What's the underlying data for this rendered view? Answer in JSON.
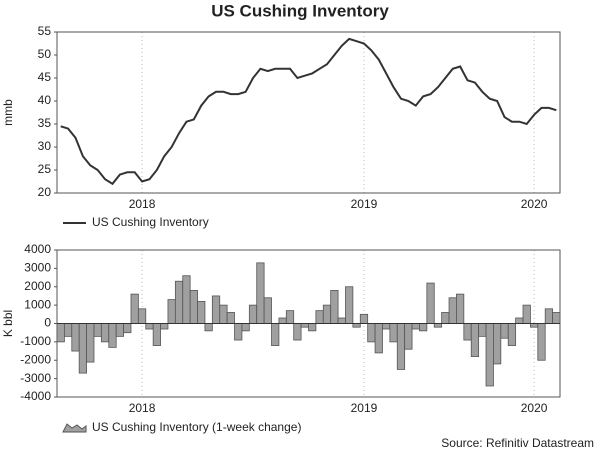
{
  "title": "US Cushing Inventory",
  "source": "Source: Refinitiv Datastream",
  "chart_data": [
    {
      "type": "line",
      "ylabel": "mmb",
      "categories": [
        null,
        null,
        null,
        null,
        null,
        null,
        null,
        null,
        null,
        null,
        null,
        "2018",
        null,
        null,
        null,
        null,
        null,
        null,
        null,
        null,
        null,
        null,
        null,
        null,
        null,
        null,
        null,
        null,
        null,
        null,
        null,
        null,
        null,
        null,
        null,
        null,
        null,
        null,
        null,
        null,
        null,
        "2019",
        null,
        null,
        null,
        null,
        null,
        null,
        null,
        null,
        null,
        null,
        null,
        null,
        null,
        null,
        null,
        null,
        null,
        null,
        null,
        null,
        null,
        null,
        "2020",
        null,
        null,
        null
      ],
      "series": [
        {
          "name": "US Cushing Inventory",
          "color": "#333333",
          "values": [
            34.5,
            34,
            32,
            28,
            26,
            25,
            23,
            22,
            24,
            24.5,
            24.5,
            22.5,
            23,
            25,
            28,
            30,
            33,
            35.5,
            36,
            39,
            41,
            42,
            42,
            41.5,
            41.5,
            42,
            45,
            47,
            46.5,
            47,
            47,
            47,
            45,
            45.5,
            46,
            47,
            48,
            50,
            52,
            53.5,
            53,
            52.5,
            51,
            49,
            46,
            43,
            40.5,
            40,
            39,
            41,
            41.5,
            43,
            45,
            47,
            47.5,
            44.5,
            44,
            42,
            40.5,
            40,
            36.5,
            35.5,
            35.5,
            35,
            37,
            38.5,
            38.5,
            38
          ]
        }
      ],
      "ylim": [
        20,
        55
      ],
      "yticks": [
        20,
        25,
        30,
        35,
        40,
        45,
        50,
        55
      ],
      "grid": true
    },
    {
      "type": "area",
      "ylabel": "K bbl",
      "categories": [
        null,
        null,
        null,
        null,
        null,
        null,
        null,
        null,
        null,
        null,
        null,
        "2018",
        null,
        null,
        null,
        null,
        null,
        null,
        null,
        null,
        null,
        null,
        null,
        null,
        null,
        null,
        null,
        null,
        null,
        null,
        null,
        null,
        null,
        null,
        null,
        null,
        null,
        null,
        null,
        null,
        null,
        "2019",
        null,
        null,
        null,
        null,
        null,
        null,
        null,
        null,
        null,
        null,
        null,
        null,
        null,
        null,
        null,
        null,
        null,
        null,
        null,
        null,
        null,
        null,
        "2020",
        null,
        null,
        null
      ],
      "series": [
        {
          "name": "US Cushing Inventory (1-week change)",
          "color": "#a0a0a0",
          "values": [
            -1000,
            -700,
            -1500,
            -2700,
            -2100,
            -700,
            -1000,
            -1300,
            -700,
            -500,
            1600,
            800,
            -300,
            -1200,
            -300,
            1300,
            2300,
            2600,
            1800,
            1200,
            -400,
            1500,
            1000,
            600,
            -900,
            -400,
            1000,
            3300,
            1400,
            -1200,
            300,
            700,
            -900,
            -200,
            -400,
            700,
            1000,
            1800,
            300,
            2000,
            -200,
            500,
            -1000,
            -1600,
            -300,
            -1000,
            -2500,
            -1400,
            -300,
            -400,
            2200,
            -200,
            600,
            1400,
            1600,
            -900,
            -1800,
            -700,
            -3400,
            -2200,
            -800,
            -1200,
            300,
            1000,
            -200,
            -2000,
            800,
            600
          ]
        }
      ],
      "ylim": [
        -4000,
        4000
      ],
      "yticks": [
        -4000,
        -3000,
        -2000,
        -1000,
        0,
        1000,
        2000,
        3000,
        4000
      ],
      "grid": true
    }
  ]
}
